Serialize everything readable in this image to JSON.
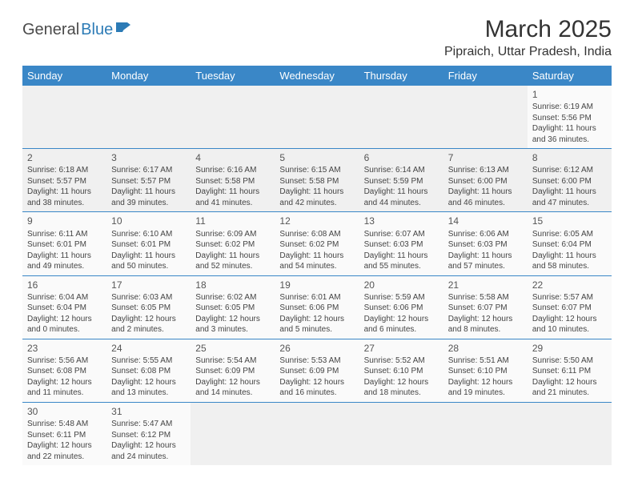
{
  "logo": {
    "part1": "General",
    "part2": "Blue"
  },
  "title": "March 2025",
  "location": "Pipraich, Uttar Pradesh, India",
  "weekdays": [
    "Sunday",
    "Monday",
    "Tuesday",
    "Wednesday",
    "Thursday",
    "Friday",
    "Saturday"
  ],
  "colors": {
    "header_bg": "#3a87c7",
    "header_text": "#ffffff",
    "divider": "#3a87c7",
    "logo_blue": "#2c7bb6",
    "text": "#333333"
  },
  "blanks_before": 6,
  "days": [
    {
      "n": 1,
      "sr": "6:19 AM",
      "ss": "5:56 PM",
      "dl": "11 hours and 36 minutes."
    },
    {
      "n": 2,
      "sr": "6:18 AM",
      "ss": "5:57 PM",
      "dl": "11 hours and 38 minutes."
    },
    {
      "n": 3,
      "sr": "6:17 AM",
      "ss": "5:57 PM",
      "dl": "11 hours and 39 minutes."
    },
    {
      "n": 4,
      "sr": "6:16 AM",
      "ss": "5:58 PM",
      "dl": "11 hours and 41 minutes."
    },
    {
      "n": 5,
      "sr": "6:15 AM",
      "ss": "5:58 PM",
      "dl": "11 hours and 42 minutes."
    },
    {
      "n": 6,
      "sr": "6:14 AM",
      "ss": "5:59 PM",
      "dl": "11 hours and 44 minutes."
    },
    {
      "n": 7,
      "sr": "6:13 AM",
      "ss": "6:00 PM",
      "dl": "11 hours and 46 minutes."
    },
    {
      "n": 8,
      "sr": "6:12 AM",
      "ss": "6:00 PM",
      "dl": "11 hours and 47 minutes."
    },
    {
      "n": 9,
      "sr": "6:11 AM",
      "ss": "6:01 PM",
      "dl": "11 hours and 49 minutes."
    },
    {
      "n": 10,
      "sr": "6:10 AM",
      "ss": "6:01 PM",
      "dl": "11 hours and 50 minutes."
    },
    {
      "n": 11,
      "sr": "6:09 AM",
      "ss": "6:02 PM",
      "dl": "11 hours and 52 minutes."
    },
    {
      "n": 12,
      "sr": "6:08 AM",
      "ss": "6:02 PM",
      "dl": "11 hours and 54 minutes."
    },
    {
      "n": 13,
      "sr": "6:07 AM",
      "ss": "6:03 PM",
      "dl": "11 hours and 55 minutes."
    },
    {
      "n": 14,
      "sr": "6:06 AM",
      "ss": "6:03 PM",
      "dl": "11 hours and 57 minutes."
    },
    {
      "n": 15,
      "sr": "6:05 AM",
      "ss": "6:04 PM",
      "dl": "11 hours and 58 minutes."
    },
    {
      "n": 16,
      "sr": "6:04 AM",
      "ss": "6:04 PM",
      "dl": "12 hours and 0 minutes."
    },
    {
      "n": 17,
      "sr": "6:03 AM",
      "ss": "6:05 PM",
      "dl": "12 hours and 2 minutes."
    },
    {
      "n": 18,
      "sr": "6:02 AM",
      "ss": "6:05 PM",
      "dl": "12 hours and 3 minutes."
    },
    {
      "n": 19,
      "sr": "6:01 AM",
      "ss": "6:06 PM",
      "dl": "12 hours and 5 minutes."
    },
    {
      "n": 20,
      "sr": "5:59 AM",
      "ss": "6:06 PM",
      "dl": "12 hours and 6 minutes."
    },
    {
      "n": 21,
      "sr": "5:58 AM",
      "ss": "6:07 PM",
      "dl": "12 hours and 8 minutes."
    },
    {
      "n": 22,
      "sr": "5:57 AM",
      "ss": "6:07 PM",
      "dl": "12 hours and 10 minutes."
    },
    {
      "n": 23,
      "sr": "5:56 AM",
      "ss": "6:08 PM",
      "dl": "12 hours and 11 minutes."
    },
    {
      "n": 24,
      "sr": "5:55 AM",
      "ss": "6:08 PM",
      "dl": "12 hours and 13 minutes."
    },
    {
      "n": 25,
      "sr": "5:54 AM",
      "ss": "6:09 PM",
      "dl": "12 hours and 14 minutes."
    },
    {
      "n": 26,
      "sr": "5:53 AM",
      "ss": "6:09 PM",
      "dl": "12 hours and 16 minutes."
    },
    {
      "n": 27,
      "sr": "5:52 AM",
      "ss": "6:10 PM",
      "dl": "12 hours and 18 minutes."
    },
    {
      "n": 28,
      "sr": "5:51 AM",
      "ss": "6:10 PM",
      "dl": "12 hours and 19 minutes."
    },
    {
      "n": 29,
      "sr": "5:50 AM",
      "ss": "6:11 PM",
      "dl": "12 hours and 21 minutes."
    },
    {
      "n": 30,
      "sr": "5:48 AM",
      "ss": "6:11 PM",
      "dl": "12 hours and 22 minutes."
    },
    {
      "n": 31,
      "sr": "5:47 AM",
      "ss": "6:12 PM",
      "dl": "12 hours and 24 minutes."
    }
  ],
  "labels": {
    "sunrise": "Sunrise:",
    "sunset": "Sunset:",
    "daylight": "Daylight:"
  }
}
